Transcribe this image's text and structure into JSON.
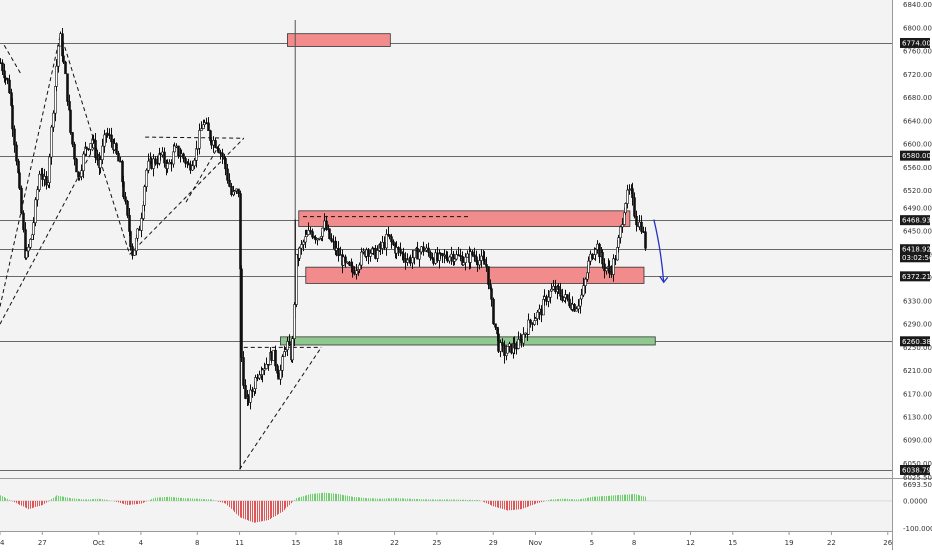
{
  "chart_data": {
    "type": "candlestick",
    "price_axis": {
      "ticks": [
        "6840.00",
        "6800.00",
        "6760.00",
        "6720.00",
        "6680.00",
        "6640.00",
        "6600.00",
        "6560.00",
        "6520.00",
        "6490.00",
        "6450.00",
        "6410.00",
        "6370.00",
        "6330.00",
        "6290.00",
        "6250.00",
        "6210.00",
        "6170.00",
        "6130.00",
        "6090.00",
        "6050.00",
        "6025.50"
      ],
      "range": [
        6025,
        6848
      ]
    },
    "price_tags": [
      {
        "label": "6774.00",
        "value": 6774
      },
      {
        "label": "6580.00",
        "value": 6580
      },
      {
        "label": "6468.93",
        "value": 6468.93
      },
      {
        "label": "6418.92",
        "value": 6418.92
      },
      {
        "label": "03:02:50",
        "value": 6405
      },
      {
        "label": "6372.21",
        "value": 6372.21
      },
      {
        "label": "6260.38",
        "value": 6260.38
      },
      {
        "label": "6038.79",
        "value": 6038.79
      }
    ],
    "indicator_axis": {
      "ticks": [
        "6693.50",
        "0.0000",
        "-100.0000"
      ],
      "range": [
        -110,
        80
      ]
    },
    "x_axis": {
      "ticks": [
        {
          "label": "24",
          "day": 0
        },
        {
          "label": "27",
          "day": 3
        },
        {
          "label": "Oct",
          "day": 7
        },
        {
          "label": "4",
          "day": 10
        },
        {
          "label": "8",
          "day": 14
        },
        {
          "label": "11",
          "day": 17
        },
        {
          "label": "15",
          "day": 21
        },
        {
          "label": "18",
          "day": 24
        },
        {
          "label": "22",
          "day": 28
        },
        {
          "label": "25",
          "day": 31
        },
        {
          "label": "29",
          "day": 35
        },
        {
          "label": "Nov",
          "day": 38
        },
        {
          "label": "5",
          "day": 42
        },
        {
          "label": "8",
          "day": 45
        },
        {
          "label": "12",
          "day": 49
        },
        {
          "label": "15",
          "day": 52
        },
        {
          "label": "19",
          "day": 56
        },
        {
          "label": "22",
          "day": 59
        },
        {
          "label": "26",
          "day": 63
        }
      ],
      "range": [
        0,
        63.3
      ]
    },
    "horizontal_levels": [
      6774,
      6580,
      6468.93,
      6418.92,
      6372.21,
      6260.38,
      6038.79
    ],
    "zones": [
      {
        "x": [
          20.4,
          27.7
        ],
        "y": [
          6768,
          6790
        ],
        "color": "#f28b8b"
      },
      {
        "x": [
          21.2,
          44.7
        ],
        "y": [
          6458,
          6485
        ],
        "color": "#f28b8b"
      },
      {
        "x": [
          21.7,
          45.7
        ],
        "y": [
          6360,
          6388
        ],
        "color": "#f28b8b"
      },
      {
        "x": [
          19.9,
          46.5
        ],
        "y": [
          6254,
          6268
        ],
        "color": "#8fc98f"
      }
    ],
    "series": [
      {
        "day": 0.0,
        "price": 6740
      },
      {
        "day": 0.6,
        "price": 6700
      },
      {
        "day": 1.2,
        "price": 6560
      },
      {
        "day": 1.8,
        "price": 6400
      },
      {
        "day": 2.3,
        "price": 6450
      },
      {
        "day": 2.8,
        "price": 6560
      },
      {
        "day": 3.3,
        "price": 6520
      },
      {
        "day": 3.8,
        "price": 6680
      },
      {
        "day": 4.2,
        "price": 6790
      },
      {
        "day": 4.6,
        "price": 6720
      },
      {
        "day": 5.0,
        "price": 6620
      },
      {
        "day": 5.5,
        "price": 6540
      },
      {
        "day": 6.0,
        "price": 6590
      },
      {
        "day": 6.5,
        "price": 6610
      },
      {
        "day": 7.0,
        "price": 6560
      },
      {
        "day": 7.5,
        "price": 6620
      },
      {
        "day": 8.0,
        "price": 6600
      },
      {
        "day": 8.5,
        "price": 6560
      },
      {
        "day": 9.0,
        "price": 6470
      },
      {
        "day": 9.4,
        "price": 6410
      },
      {
        "day": 9.9,
        "price": 6460
      },
      {
        "day": 10.4,
        "price": 6560
      },
      {
        "day": 10.9,
        "price": 6570
      },
      {
        "day": 11.4,
        "price": 6580
      },
      {
        "day": 11.9,
        "price": 6560
      },
      {
        "day": 12.4,
        "price": 6590
      },
      {
        "day": 12.9,
        "price": 6580
      },
      {
        "day": 13.4,
        "price": 6560
      },
      {
        "day": 13.9,
        "price": 6590
      },
      {
        "day": 14.4,
        "price": 6640
      },
      {
        "day": 14.9,
        "price": 6610
      },
      {
        "day": 15.4,
        "price": 6600
      },
      {
        "day": 15.9,
        "price": 6570
      },
      {
        "day": 16.4,
        "price": 6510
      },
      {
        "day": 16.9,
        "price": 6520
      },
      {
        "day": 17.1,
        "price": 6240
      },
      {
        "day": 17.4,
        "price": 6150
      },
      {
        "day": 17.8,
        "price": 6170
      },
      {
        "day": 18.3,
        "price": 6210
      },
      {
        "day": 18.8,
        "price": 6220
      },
      {
        "day": 19.3,
        "price": 6240
      },
      {
        "day": 19.8,
        "price": 6200
      },
      {
        "day": 20.3,
        "price": 6260
      },
      {
        "day": 20.7,
        "price": 6230
      },
      {
        "day": 21.0,
        "price": 6400
      },
      {
        "day": 21.5,
        "price": 6430
      },
      {
        "day": 22.0,
        "price": 6450
      },
      {
        "day": 22.5,
        "price": 6440
      },
      {
        "day": 23.0,
        "price": 6460
      },
      {
        "day": 23.5,
        "price": 6430
      },
      {
        "day": 24.0,
        "price": 6410
      },
      {
        "day": 24.5,
        "price": 6390
      },
      {
        "day": 25.0,
        "price": 6380
      },
      {
        "day": 25.5,
        "price": 6400
      },
      {
        "day": 26.0,
        "price": 6420
      },
      {
        "day": 26.5,
        "price": 6410
      },
      {
        "day": 27.0,
        "price": 6420
      },
      {
        "day": 27.5,
        "price": 6440
      },
      {
        "day": 28.0,
        "price": 6420
      },
      {
        "day": 28.5,
        "price": 6410
      },
      {
        "day": 29.0,
        "price": 6400
      },
      {
        "day": 29.5,
        "price": 6410
      },
      {
        "day": 30.0,
        "price": 6420
      },
      {
        "day": 30.5,
        "price": 6410
      },
      {
        "day": 31.0,
        "price": 6400
      },
      {
        "day": 31.5,
        "price": 6405
      },
      {
        "day": 32.0,
        "price": 6410
      },
      {
        "day": 32.5,
        "price": 6405
      },
      {
        "day": 33.0,
        "price": 6400
      },
      {
        "day": 33.5,
        "price": 6410
      },
      {
        "day": 34.0,
        "price": 6400
      },
      {
        "day": 34.5,
        "price": 6390
      },
      {
        "day": 35.0,
        "price": 6300
      },
      {
        "day": 35.4,
        "price": 6250
      },
      {
        "day": 35.8,
        "price": 6240
      },
      {
        "day": 36.3,
        "price": 6250
      },
      {
        "day": 36.8,
        "price": 6255
      },
      {
        "day": 37.3,
        "price": 6280
      },
      {
        "day": 37.8,
        "price": 6300
      },
      {
        "day": 38.3,
        "price": 6310
      },
      {
        "day": 38.8,
        "price": 6340
      },
      {
        "day": 39.3,
        "price": 6350
      },
      {
        "day": 39.8,
        "price": 6340
      },
      {
        "day": 40.3,
        "price": 6330
      },
      {
        "day": 40.8,
        "price": 6320
      },
      {
        "day": 41.3,
        "price": 6340
      },
      {
        "day": 41.8,
        "price": 6400
      },
      {
        "day": 42.3,
        "price": 6430
      },
      {
        "day": 42.8,
        "price": 6390
      },
      {
        "day": 43.3,
        "price": 6380
      },
      {
        "day": 43.8,
        "price": 6420
      },
      {
        "day": 44.3,
        "price": 6500
      },
      {
        "day": 44.7,
        "price": 6520
      },
      {
        "day": 45.1,
        "price": 6470
      },
      {
        "day": 45.5,
        "price": 6460
      },
      {
        "day": 45.8,
        "price": 6419
      }
    ],
    "oscillator": [
      {
        "day": 0,
        "value": 20
      },
      {
        "day": 1,
        "value": -5
      },
      {
        "day": 2,
        "value": -30
      },
      {
        "day": 3,
        "value": -15
      },
      {
        "day": 4,
        "value": 20
      },
      {
        "day": 5,
        "value": 10
      },
      {
        "day": 6,
        "value": 5
      },
      {
        "day": 7,
        "value": 8
      },
      {
        "day": 8,
        "value": 0
      },
      {
        "day": 9,
        "value": -15
      },
      {
        "day": 10,
        "value": -10
      },
      {
        "day": 11,
        "value": 12
      },
      {
        "day": 12,
        "value": 15
      },
      {
        "day": 13,
        "value": 10
      },
      {
        "day": 14,
        "value": 8
      },
      {
        "day": 15,
        "value": 5
      },
      {
        "day": 16,
        "value": -10
      },
      {
        "day": 17,
        "value": -60
      },
      {
        "day": 18,
        "value": -80
      },
      {
        "day": 19,
        "value": -70
      },
      {
        "day": 20,
        "value": -40
      },
      {
        "day": 21,
        "value": 10
      },
      {
        "day": 22,
        "value": 25
      },
      {
        "day": 23,
        "value": 30
      },
      {
        "day": 24,
        "value": 25
      },
      {
        "day": 25,
        "value": 15
      },
      {
        "day": 26,
        "value": 10
      },
      {
        "day": 27,
        "value": 8
      },
      {
        "day": 28,
        "value": 10
      },
      {
        "day": 29,
        "value": 8
      },
      {
        "day": 30,
        "value": 6
      },
      {
        "day": 31,
        "value": 5
      },
      {
        "day": 32,
        "value": 5
      },
      {
        "day": 33,
        "value": 4
      },
      {
        "day": 34,
        "value": 3
      },
      {
        "day": 35,
        "value": -20
      },
      {
        "day": 36,
        "value": -35
      },
      {
        "day": 37,
        "value": -30
      },
      {
        "day": 38,
        "value": -10
      },
      {
        "day": 39,
        "value": 5
      },
      {
        "day": 40,
        "value": 8
      },
      {
        "day": 41,
        "value": 5
      },
      {
        "day": 42,
        "value": 15
      },
      {
        "day": 43,
        "value": 18
      },
      {
        "day": 44,
        "value": 22
      },
      {
        "day": 45,
        "value": 25
      },
      {
        "day": 45.8,
        "value": 15
      }
    ]
  }
}
